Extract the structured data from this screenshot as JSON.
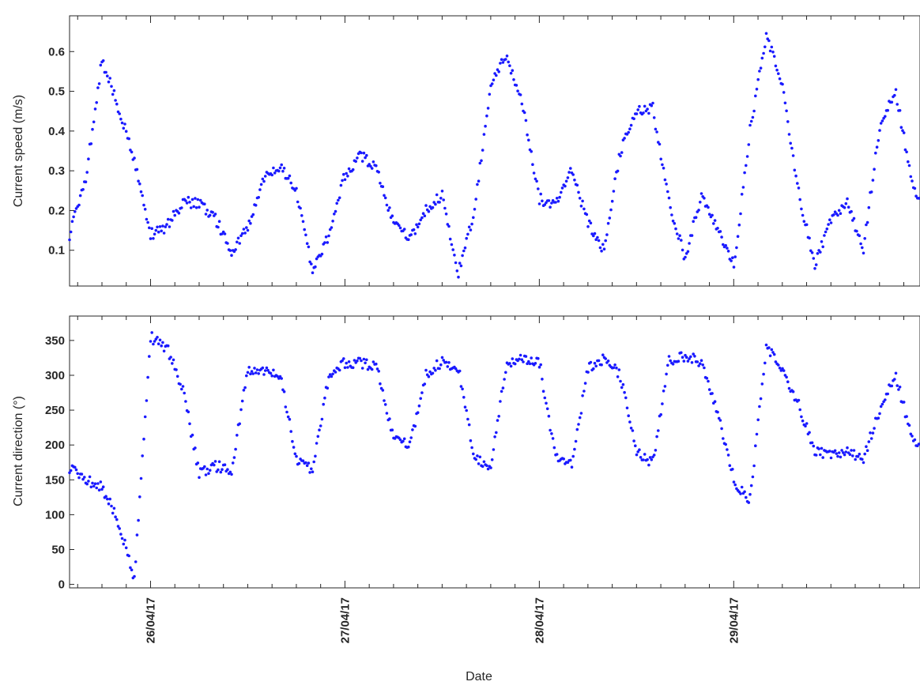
{
  "colors": {
    "marker": "#1a1aff",
    "axis": "#262626",
    "background": "#ffffff"
  },
  "chart_data": [
    {
      "type": "scatter",
      "title": "",
      "xlabel": "",
      "ylabel": "Current speed (m/s)",
      "xlim": [
        "25/04/17 14:00",
        "29/04/17 23:00"
      ],
      "ylim": [
        0.01,
        0.69
      ],
      "yticks": [
        "0.1",
        "0.2",
        "0.3",
        "0.4",
        "0.5",
        "0.6"
      ],
      "xtick_dates": [
        "26/04/17",
        "27/04/17",
        "28/04/17",
        "29/04/17"
      ],
      "grid": false,
      "series": [
        {
          "marker": "dot",
          "x_hours_from_start": [
            0,
            2,
            4,
            6,
            8,
            10,
            12,
            14,
            16,
            18,
            20,
            22,
            24,
            26,
            28,
            30,
            32,
            34,
            36,
            38,
            40,
            42,
            44,
            46,
            48,
            50,
            52,
            54,
            56,
            58,
            60,
            62,
            64,
            66,
            68,
            70,
            72,
            74,
            76,
            78,
            80,
            82,
            84,
            86,
            88,
            90,
            92,
            94,
            96,
            98,
            100,
            102,
            104,
            106
          ],
          "y": [
            0.14,
            0.28,
            0.58,
            0.46,
            0.33,
            0.14,
            0.16,
            0.22,
            0.22,
            0.18,
            0.1,
            0.16,
            0.28,
            0.31,
            0.25,
            0.05,
            0.14,
            0.29,
            0.34,
            0.3,
            0.17,
            0.13,
            0.2,
            0.24,
            0.04,
            0.2,
            0.52,
            0.59,
            0.46,
            0.23,
            0.21,
            0.3,
            0.17,
            0.1,
            0.35,
            0.45,
            0.46,
            0.22,
            0.08,
            0.24,
            0.16,
            0.06,
            0.4,
            0.64,
            0.52,
            0.25,
            0.06,
            0.18,
            0.22,
            0.1,
            0.41,
            0.5,
            0.27,
            0.17
          ]
        }
      ],
      "note_series": "x values are hours after 25/04/17 14:00"
    },
    {
      "type": "scatter",
      "title": "",
      "xlabel": "Date",
      "ylabel": "Current direction (°)",
      "xlim": [
        "25/04/17 14:00",
        "29/04/17 23:00"
      ],
      "ylim": [
        -5,
        385
      ],
      "yticks": [
        "0",
        "50",
        "100",
        "150",
        "200",
        "250",
        "300",
        "350"
      ],
      "xticks": [
        "26/04/17",
        "27/04/17",
        "28/04/17",
        "29/04/17"
      ],
      "grid": false,
      "series": [
        {
          "marker": "dot",
          "x_hours_from_start": [
            0,
            2,
            4,
            6,
            8,
            10,
            12,
            14,
            16,
            18,
            20,
            22,
            24,
            26,
            28,
            30,
            32,
            34,
            36,
            38,
            40,
            42,
            44,
            46,
            48,
            50,
            52,
            54,
            56,
            58,
            60,
            62,
            64,
            66,
            68,
            70,
            72,
            74,
            76,
            78,
            80,
            82,
            84,
            86,
            88,
            90,
            92,
            94,
            96,
            98,
            100,
            102,
            104,
            106
          ],
          "y": [
            168,
            150,
            140,
            90,
            10,
            355,
            340,
            280,
            160,
            170,
            165,
            310,
            305,
            300,
            180,
            165,
            300,
            318,
            318,
            310,
            210,
            200,
            300,
            320,
            310,
            180,
            170,
            318,
            324,
            320,
            180,
            170,
            310,
            325,
            300,
            190,
            175,
            320,
            328,
            320,
            250,
            150,
            120,
            340,
            310,
            260,
            190,
            188,
            190,
            180,
            250,
            300,
            210,
            185
          ]
        }
      ]
    }
  ]
}
